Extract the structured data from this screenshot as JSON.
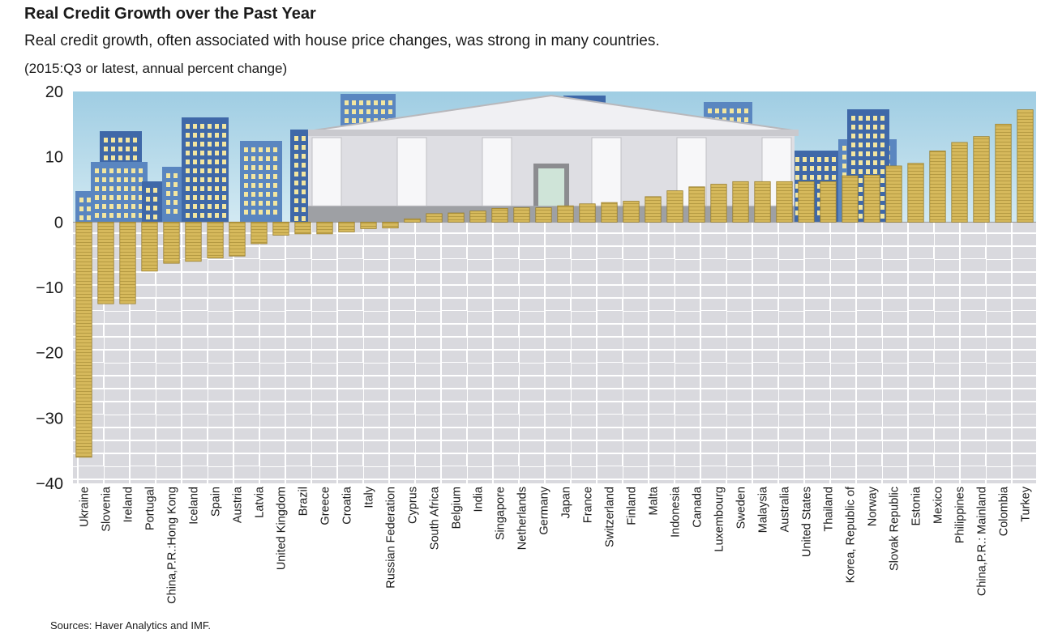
{
  "header": {
    "title": "Real Credit Growth over the Past Year",
    "subtitle": "Real credit growth, often associated with house price changes, was strong in many countries.",
    "units": "(2015:Q3 or latest, annual percent change)"
  },
  "footer": {
    "source": "Sources: Haver Analytics and IMF."
  },
  "colors": {
    "sky": "#a9d4e6",
    "bar": "#d4b75a",
    "bar_edge": "#8a7226",
    "pavement": "#d8d8dc",
    "building": "#3f68a8",
    "window": "#f3e6a0",
    "temple": "#e6e6ea"
  },
  "chart_data": {
    "type": "bar",
    "title": "Real Credit Growth over the Past Year",
    "ylim": [
      -40,
      20
    ],
    "yticks": [
      20,
      10,
      0,
      -10,
      -20,
      -30,
      -40
    ],
    "ytick_labels": [
      "20",
      "10",
      "0",
      "−10",
      "−20",
      "−30",
      "−40"
    ],
    "categories": [
      "Ukraine",
      "Slovenia",
      "Ireland",
      "Portugal",
      "China,P.R.:Hong Kong",
      "Iceland",
      "Spain",
      "Austria",
      "Latvia",
      "United Kingdom",
      "Brazil",
      "Greece",
      "Croatia",
      "Italy",
      "Russian Federation",
      "Cyprus",
      "South Africa",
      "Belgium",
      "India",
      "Singapore",
      "Netherlands",
      "Germany",
      "Japan",
      "France",
      "Switzerland",
      "Finland",
      "Malta",
      "Indonesia",
      "Canada",
      "Luxembourg",
      "Sweden",
      "Malaysia",
      "Australia",
      "United States",
      "Thailand",
      "Korea, Republic of",
      "Norway",
      "Slovak Republic",
      "Estonia",
      "Mexico",
      "Philippines",
      "China,P.R.: Mainland",
      "Colombia",
      "Turkey"
    ],
    "values": [
      -36,
      -12.5,
      -12.5,
      -7.5,
      -6.3,
      -6,
      -5.5,
      -5.2,
      -3.3,
      -2,
      -1.8,
      -1.8,
      -1.5,
      -1,
      -0.9,
      0.5,
      1.3,
      1.4,
      1.7,
      2.1,
      2.2,
      2.2,
      2.5,
      2.8,
      3,
      3.2,
      3.9,
      4.8,
      5.4,
      5.8,
      6.2,
      6.2,
      6.2,
      6.2,
      6.2,
      7.1,
      7.2,
      8.6,
      9,
      10.9,
      12.2,
      13.1,
      15,
      17.2
    ],
    "grid": false,
    "legend": "none"
  }
}
